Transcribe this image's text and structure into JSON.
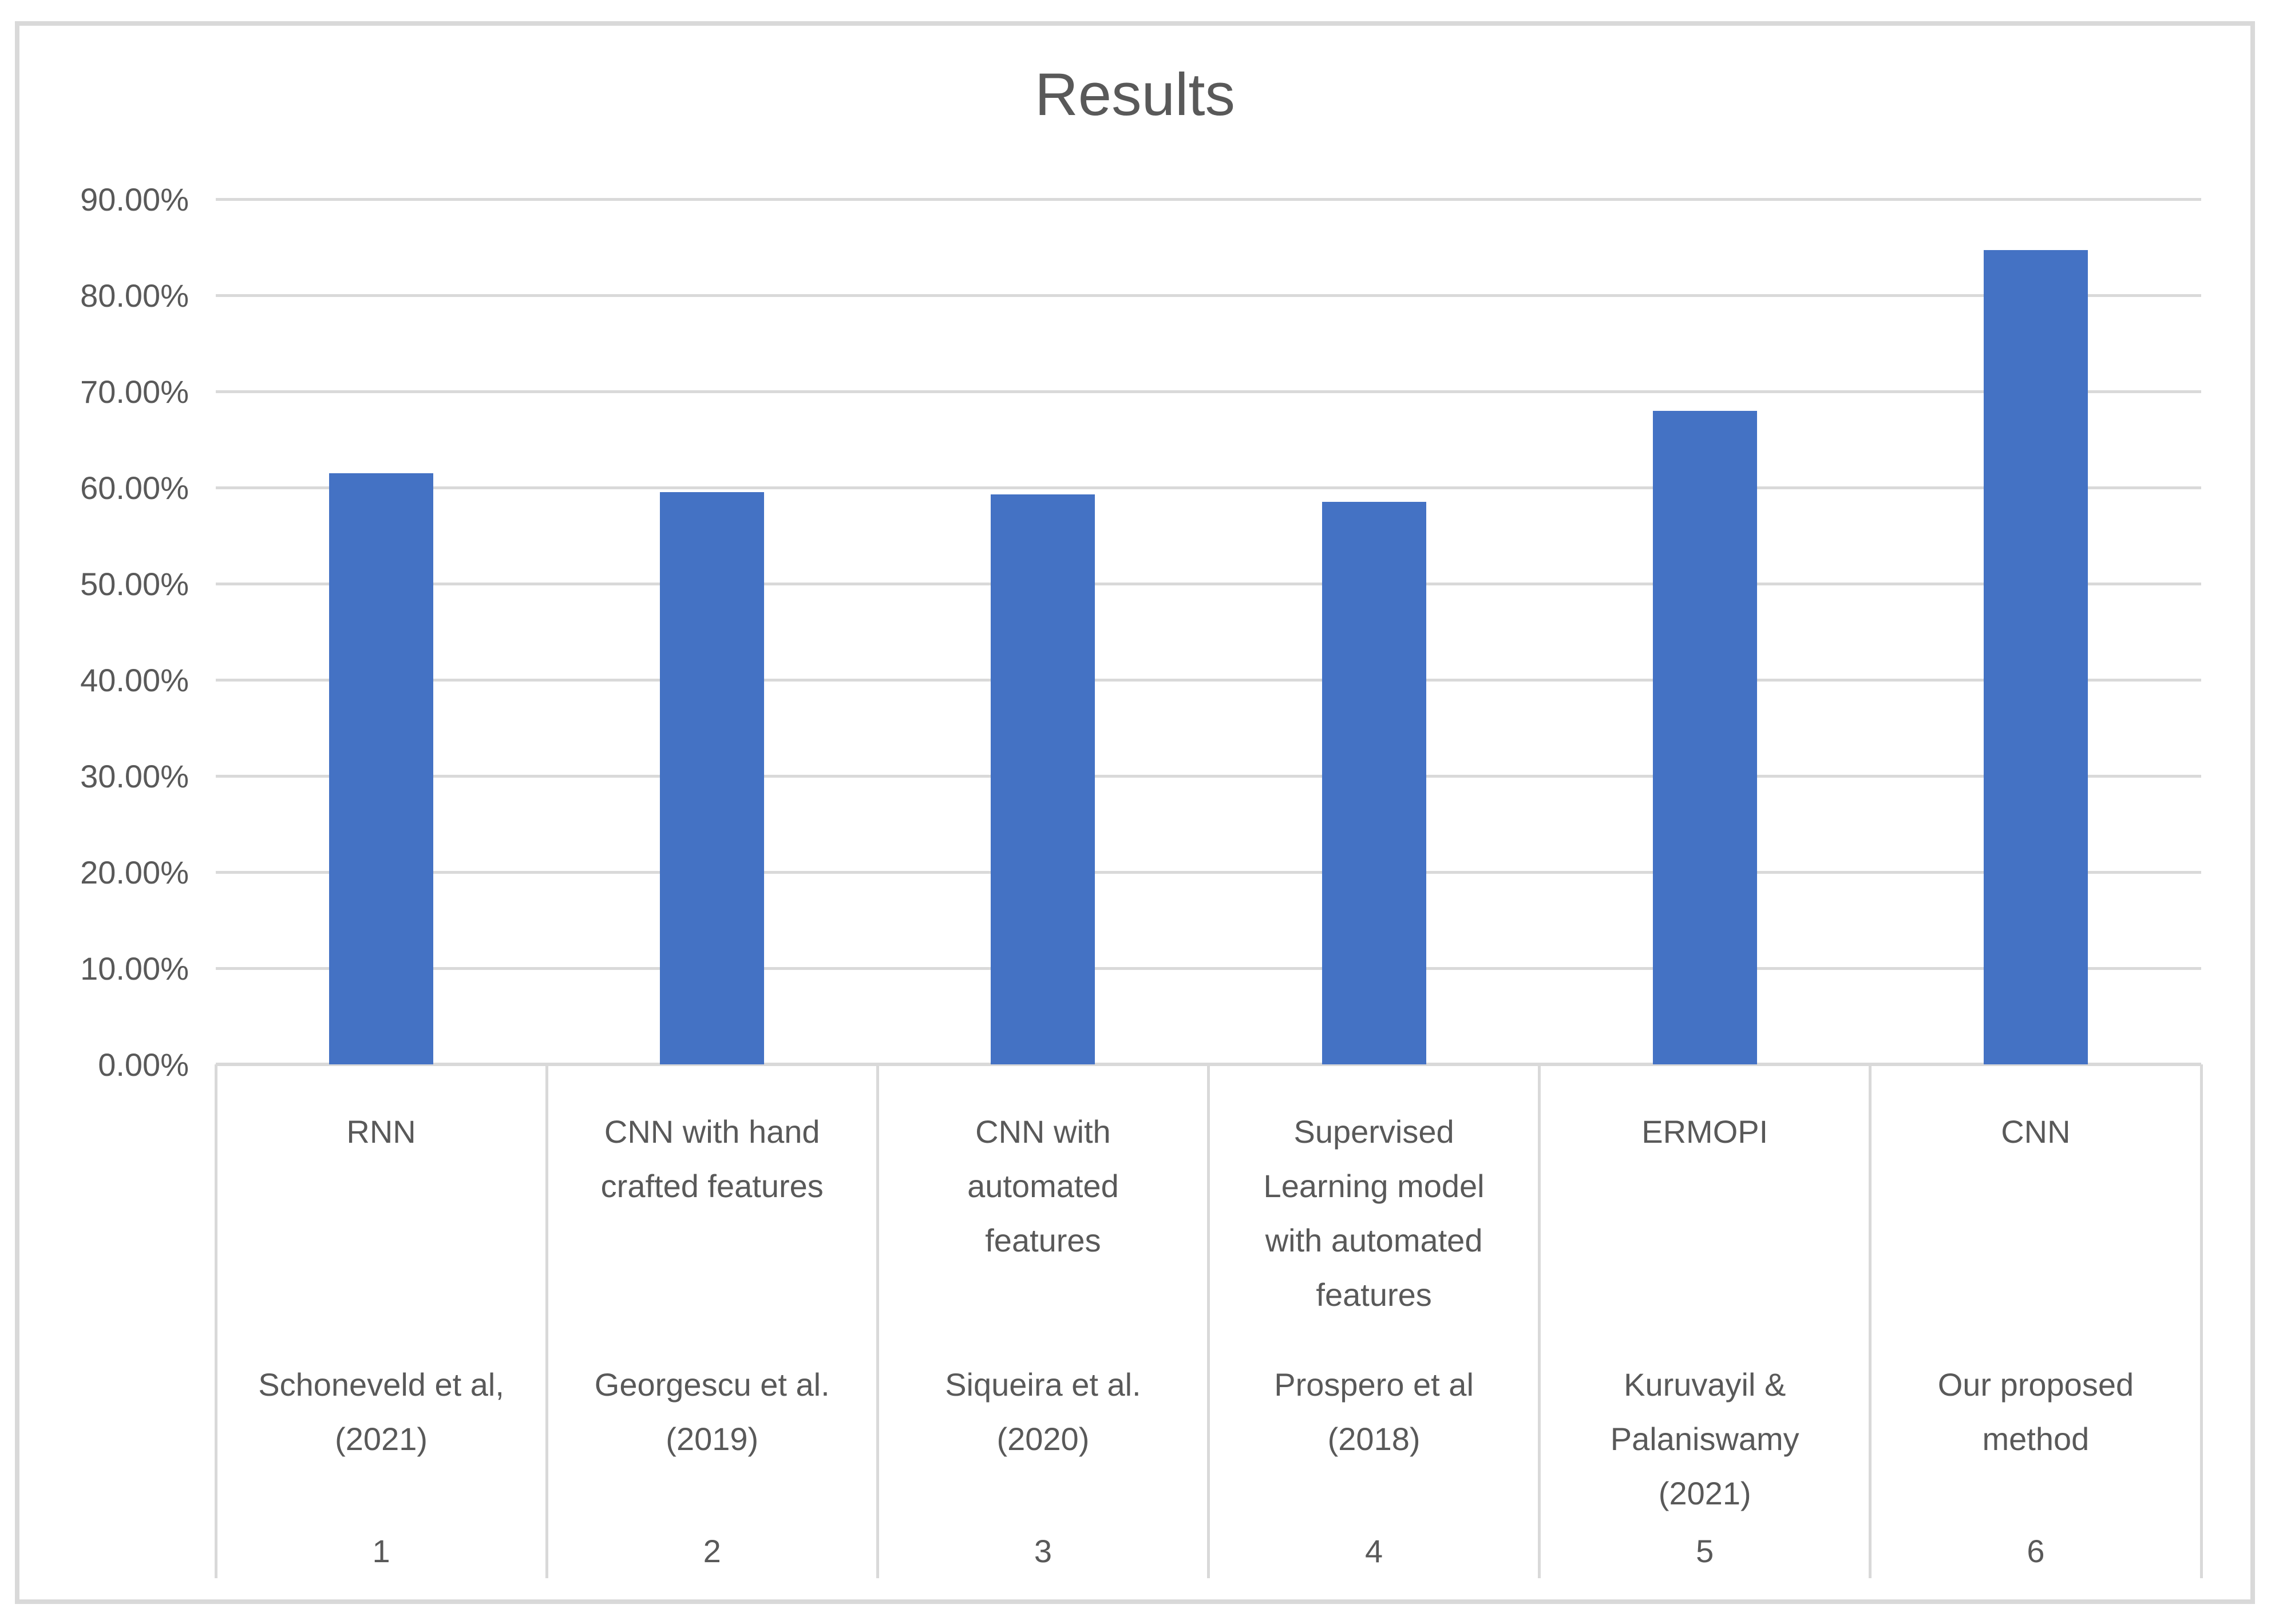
{
  "title": "Results",
  "colors": {
    "bar": "#4472C4",
    "gridline": "#D9D9D9",
    "axis_line": "#D9D9D9",
    "table_line": "#D9D9D9",
    "border": "#D9D9D9",
    "text": "#595959"
  },
  "y_axis": {
    "ticks": [
      "0.00%",
      "10.00%",
      "20.00%",
      "30.00%",
      "40.00%",
      "50.00%",
      "60.00%",
      "70.00%",
      "80.00%",
      "90.00%"
    ]
  },
  "chart_data": {
    "type": "bar",
    "title": "Results",
    "categories": [
      {
        "method": "RNN",
        "author": "Schoneveld et al,\n(2021)",
        "index": "1"
      },
      {
        "method": "CNN with hand\ncrafted features",
        "author": "Georgescu et al.\n(2019)",
        "index": "2"
      },
      {
        "method": "CNN with\nautomated\nfeatures",
        "author": "Siqueira et al.\n(2020)",
        "index": "3"
      },
      {
        "method": "Supervised\nLearning model\nwith automated\nfeatures",
        "author": "Prospero et al\n(2018)",
        "index": "4"
      },
      {
        "method": "ERMOPI",
        "author": "Kuruvayil &\nPalaniswamy\n(2021)",
        "index": "5"
      },
      {
        "method": "CNN",
        "author": "Our proposed\nmethod",
        "index": "6"
      }
    ],
    "values": [
      61.5,
      59.5,
      59.3,
      58.5,
      68,
      84.7
    ],
    "unit": "%",
    "xlabel": "",
    "ylabel": "",
    "ylim": [
      0,
      90
    ],
    "y_tick_step": 10,
    "grid": true,
    "legend": false,
    "series_color": "#4472C4"
  }
}
